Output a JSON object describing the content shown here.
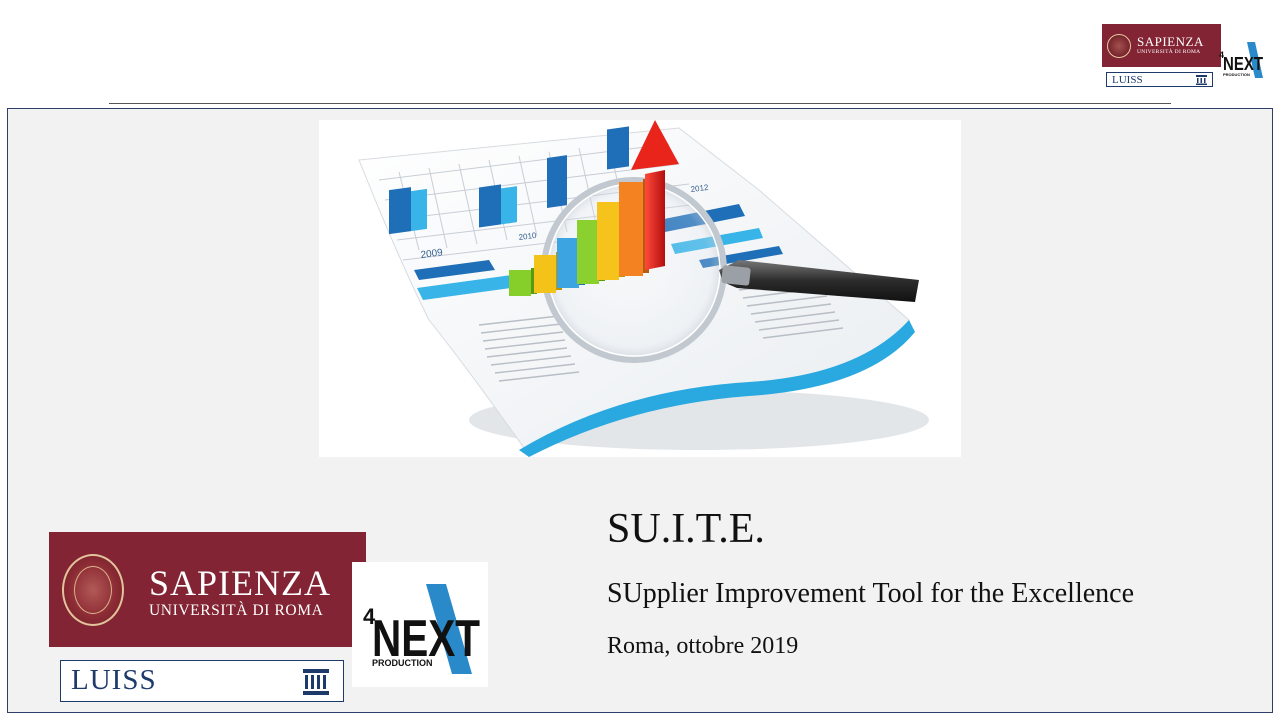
{
  "slide": {
    "title": "SU.I.T.E.",
    "subtitle": "SUpplier Improvement Tool for the Excellence",
    "date": "Roma, ottobre 2019"
  },
  "logos": {
    "sapienza_name": "SAPIENZA",
    "sapienza_sub": "UNIVERSITÀ DI ROMA",
    "luiss": "LUISS",
    "next_number": "4",
    "next_word": "NEXT",
    "next_sub": "PRODUCTION"
  },
  "hero": {
    "year_labels": [
      "2009",
      "2010",
      "2012"
    ]
  },
  "colors": {
    "sapienza_red": "#822433",
    "luiss_blue": "#1d3a6b",
    "next_blue": "#2a8ac9",
    "frame_border": "#2f3f6a"
  }
}
